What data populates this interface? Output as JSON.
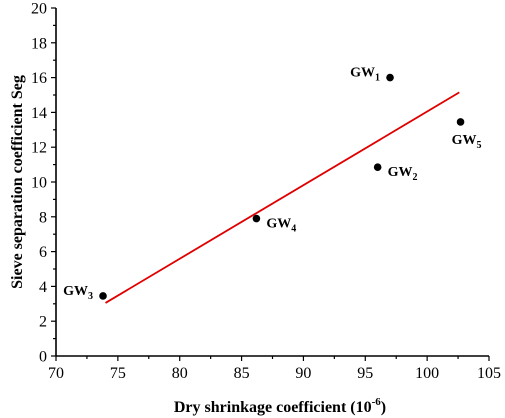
{
  "chart_data": {
    "type": "scatter",
    "title": "",
    "xlabel": "Dry shrinkage coefficient (10",
    "xlabel_sup": "-6",
    "xlabel_end": ")",
    "ylabel": "Sieve separation coefficient  Seg",
    "xlim": [
      70,
      105
    ],
    "ylim": [
      0,
      20
    ],
    "x_ticks": [
      70,
      75,
      80,
      85,
      90,
      95,
      100,
      105
    ],
    "y_ticks": [
      0,
      2,
      4,
      6,
      8,
      10,
      12,
      14,
      16,
      18,
      20
    ],
    "grid": false,
    "points": [
      {
        "label": "GW",
        "sub": "1",
        "x": 97.0,
        "y": 16.0,
        "label_pos": "left-above"
      },
      {
        "label": "GW",
        "sub": "2",
        "x": 96.0,
        "y": 10.85,
        "label_pos": "right-below"
      },
      {
        "label": "GW",
        "sub": "3",
        "x": 73.8,
        "y": 3.45,
        "label_pos": "left-above"
      },
      {
        "label": "GW",
        "sub": "4",
        "x": 86.2,
        "y": 7.9,
        "label_pos": "right-below"
      },
      {
        "label": "GW",
        "sub": "5",
        "x": 102.7,
        "y": 13.45,
        "label_pos": "below"
      }
    ],
    "fit_line": {
      "x": [
        74.0,
        102.6
      ],
      "y": [
        3.05,
        15.15
      ],
      "color": "#e00000"
    },
    "point_color": "#000000"
  }
}
